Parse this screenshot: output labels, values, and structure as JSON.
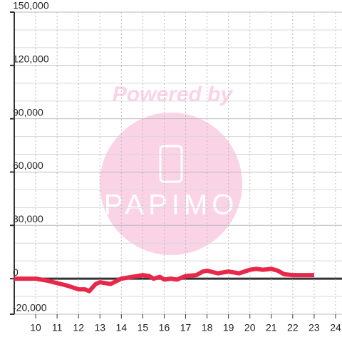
{
  "chart_data": {
    "type": "line",
    "watermark": [
      "Powered by",
      "PAPIMO"
    ],
    "x": [
      9,
      10,
      10.5,
      11,
      11.5,
      12,
      12.3,
      12.5,
      12.8,
      13,
      13.5,
      14,
      14.5,
      15,
      15.3,
      15.5,
      15.8,
      16,
      16.3,
      16.6,
      17,
      17.5,
      17.8,
      18,
      18.5,
      19,
      19.5,
      20,
      20.3,
      20.6,
      21,
      21.3,
      21.6,
      22,
      23
    ],
    "series": [
      {
        "color": "#e8284a",
        "values": [
          0,
          0,
          -1000,
          -2500,
          -4000,
          -6000,
          -6000,
          -7000,
          -3000,
          -2000,
          -3000,
          0,
          1000,
          2000,
          1500,
          0,
          1000,
          -500,
          0,
          -500,
          1500,
          2000,
          4000,
          4500,
          3000,
          4000,
          3000,
          5000,
          5500,
          5000,
          5500,
          4500,
          2500,
          2000,
          2000
        ]
      }
    ],
    "xlim": [
      9,
      24.3
    ],
    "xticks": [
      10,
      11,
      12,
      13,
      14,
      15,
      16,
      17,
      18,
      19,
      20,
      21,
      22,
      23,
      24
    ],
    "ylim": [
      -20000,
      150000
    ],
    "yticks": [
      {
        "value": -20000,
        "label": "-20,000"
      },
      0,
      {
        "value": 30000,
        "label": "30,000"
      },
      {
        "value": 60000,
        "label": "60,000"
      },
      {
        "value": 90000,
        "label": "90,000"
      },
      {
        "value": 120000,
        "label": "120,000"
      },
      {
        "value": 150000,
        "label": "150,000"
      }
    ],
    "minor_yticks": [
      -10000,
      10000,
      20000,
      40000,
      50000,
      70000,
      80000,
      100000,
      110000,
      130000,
      140000
    ],
    "grid": true
  }
}
